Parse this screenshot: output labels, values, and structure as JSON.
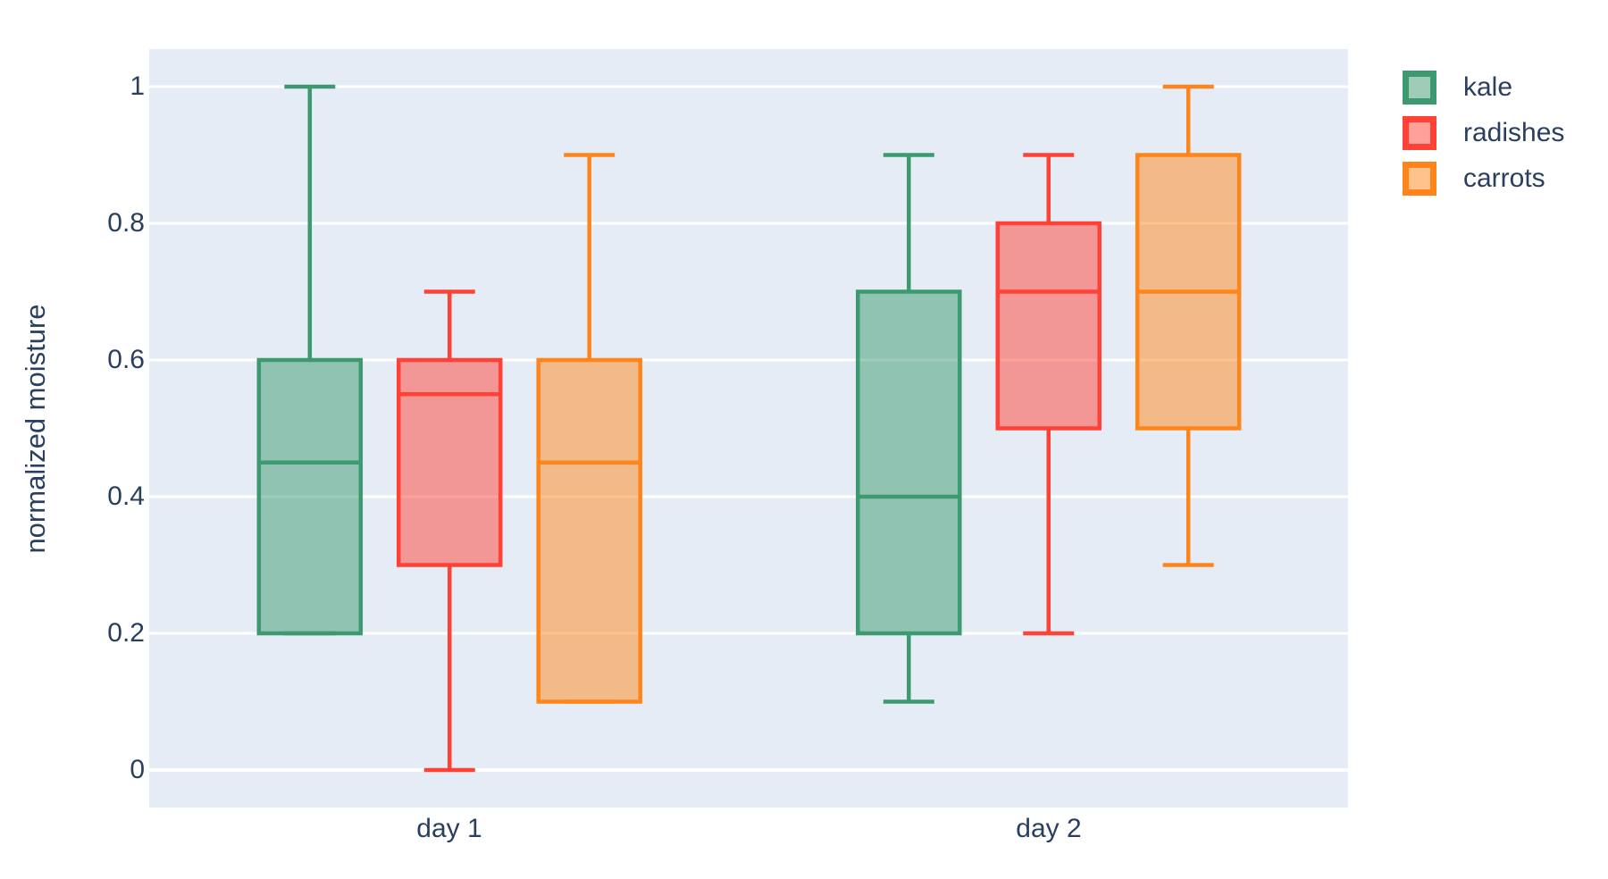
{
  "figure_title": "",
  "legend": {
    "items": [
      {
        "label": "kale"
      },
      {
        "label": "radishes"
      },
      {
        "label": "carrots"
      }
    ]
  },
  "chart_data": {
    "type": "box",
    "title": "",
    "xlabel": "",
    "ylabel": "normalized moisture",
    "categories": [
      "day 1",
      "day 2"
    ],
    "y_ticks": [
      0,
      0.2,
      0.4,
      0.6,
      0.8,
      1
    ],
    "y_tick_labels": [
      "0",
      "0.2",
      "0.4",
      "0.6",
      "0.8",
      "1"
    ],
    "ylim": [
      -0.06,
      1.06
    ],
    "grid": true,
    "legend_position": "outside-top-right",
    "colors": {
      "plot_background": "#E5ECF6",
      "paper_background": "#FFFFFF",
      "grid": "#FFFFFF",
      "text": "#2A3F5F"
    },
    "boxmode": "group",
    "series": [
      {
        "name": "kale",
        "color": "#3D9970",
        "fill_opacity": 0.5,
        "boxes": [
          {
            "category": "day 1",
            "min": 0.2,
            "q1": 0.2,
            "median": 0.45,
            "q3": 0.6,
            "max": 1.0
          },
          {
            "category": "day 2",
            "min": 0.1,
            "q1": 0.2,
            "median": 0.4,
            "q3": 0.7,
            "max": 0.9
          }
        ]
      },
      {
        "name": "radishes",
        "color": "#FF4136",
        "fill_opacity": 0.5,
        "boxes": [
          {
            "category": "day 1",
            "min": 0.0,
            "q1": 0.3,
            "median": 0.55,
            "q3": 0.6,
            "max": 0.7
          },
          {
            "category": "day 2",
            "min": 0.2,
            "q1": 0.5,
            "median": 0.7,
            "q3": 0.8,
            "max": 0.9
          }
        ]
      },
      {
        "name": "carrots",
        "color": "#FF851B",
        "fill_opacity": 0.5,
        "boxes": [
          {
            "category": "day 1",
            "min": 0.1,
            "q1": 0.1,
            "median": 0.45,
            "q3": 0.6,
            "max": 0.9
          },
          {
            "category": "day 2",
            "min": 0.3,
            "q1": 0.5,
            "median": 0.7,
            "q3": 0.9,
            "max": 1.0
          }
        ]
      }
    ]
  }
}
